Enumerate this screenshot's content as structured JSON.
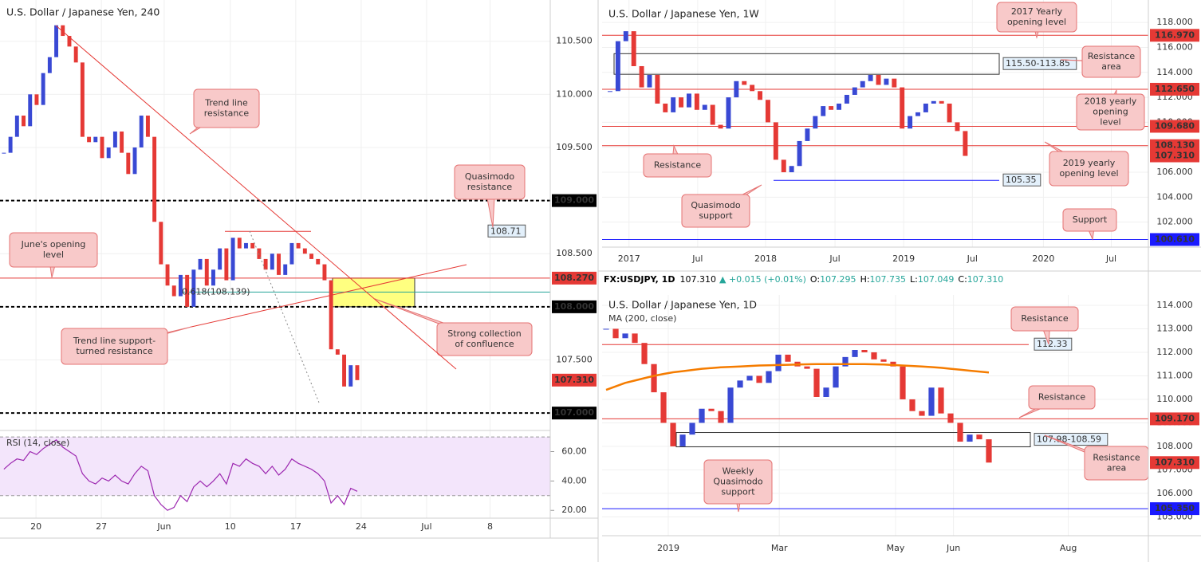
{
  "panels": {
    "h4": {
      "title": "U.S. Dollar / Japanese Yen, 240",
      "grid": true,
      "up_color": "#3949d4",
      "down_color": "#e53935",
      "xlim": [
        -0.6,
        83.5
      ],
      "xticks": [
        {
          "value": 4.9,
          "label": "20"
        },
        {
          "value": 14.9,
          "label": "27"
        },
        {
          "value": 24.5,
          "label": "Jun"
        },
        {
          "value": 34.6,
          "label": "10"
        },
        {
          "value": 44.6,
          "label": "17"
        },
        {
          "value": 54.6,
          "label": "24"
        },
        {
          "value": 64.6,
          "label": "Jul"
        },
        {
          "value": 74.3,
          "label": "8"
        }
      ],
      "ylim": [
        106.836,
        110.888
      ],
      "yticks": [
        {
          "value": 107,
          "label": "107.000"
        },
        {
          "value": 107.5,
          "label": "107.500"
        },
        {
          "value": 108,
          "label": "108.000"
        },
        {
          "value": 108.5,
          "label": "108.500"
        },
        {
          "value": 109,
          "label": "109.000"
        },
        {
          "value": 109.5,
          "label": "109.500"
        },
        {
          "value": 110,
          "label": "110.000"
        },
        {
          "value": 110.5,
          "label": "110.500"
        }
      ],
      "closes": [
        109.45,
        109.6,
        109.8,
        109.7,
        110.0,
        109.9,
        110.2,
        110.35,
        110.65,
        110.55,
        110.45,
        110.3,
        109.6,
        109.55,
        109.6,
        109.4,
        109.5,
        109.65,
        109.45,
        109.25,
        109.5,
        109.8,
        109.6,
        108.8,
        108.4,
        108.2,
        108.1,
        108.3,
        108.0,
        108.35,
        108.45,
        108.2,
        108.35,
        108.55,
        108.25,
        108.65,
        108.55,
        108.6,
        108.55,
        108.45,
        108.35,
        108.5,
        108.3,
        108.4,
        108.6,
        108.55,
        108.5,
        108.45,
        108.4,
        108.25,
        107.6,
        107.55,
        107.25,
        107.45,
        107.31
      ],
      "levels": [
        {
          "value": 109,
          "label": "109.000",
          "color": "#000000",
          "style": "dashed",
          "tag": "axis"
        },
        {
          "value": 108.27,
          "label": "108.270",
          "color": "#e53935",
          "style": "solid",
          "tag": "axis"
        },
        {
          "value": 108,
          "label": "108.000",
          "color": "#000000",
          "style": "dashed",
          "tag": "axis"
        },
        {
          "value": 107.31,
          "label": "107.310",
          "color": "#e53935",
          "style": "none",
          "tag": "axis"
        },
        {
          "value": 107,
          "label": "107.000",
          "color": "#000000",
          "style": "dashed",
          "tag": "axis"
        },
        {
          "value": 108.71,
          "label": "108.71",
          "color": "#e53935",
          "style": "solid",
          "tag": "box"
        },
        {
          "value": 108.139,
          "label": "0.618(108.139)",
          "color": "#26a69a",
          "style": "solid",
          "tag": "text"
        }
      ],
      "zones": [
        {
          "low": 108,
          "high": 108.27,
          "color": "#ffff80"
        }
      ],
      "callouts": [
        {
          "lines": [
            "Trend line",
            "resistance"
          ]
        },
        {
          "lines": [
            "Quasimodo",
            "resistance"
          ]
        },
        {
          "lines": [
            "June's opening",
            "level"
          ]
        },
        {
          "lines": [
            "Trend line support-",
            "turned resistance"
          ]
        },
        {
          "lines": [
            "Strong collection",
            "of confluence"
          ]
        }
      ],
      "rsi": {
        "title": "RSI (14, close)",
        "color": "#9c27b0",
        "ylim": [
          14.7,
          73.3
        ],
        "yticks": [
          {
            "value": 20,
            "label": "20.00"
          },
          {
            "value": 40,
            "label": "40.00"
          },
          {
            "value": 60,
            "label": "60.00"
          }
        ],
        "bands": [
          30,
          70
        ],
        "values": [
          48,
          52,
          55,
          54,
          60,
          58,
          62,
          65,
          68,
          63,
          60,
          57,
          45,
          40,
          38,
          42,
          40,
          44,
          40,
          38,
          45,
          50,
          47,
          30,
          24,
          20,
          22,
          30,
          26,
          36,
          40,
          36,
          40,
          45,
          38,
          52,
          50,
          55,
          52,
          50,
          45,
          50,
          44,
          48,
          55,
          52,
          50,
          48,
          45,
          40,
          25,
          30,
          24,
          35,
          33
        ]
      }
    },
    "w": {
      "title": "U.S. Dollar / Japanese Yen, 1W",
      "grid": true,
      "up_color": "#3949d4",
      "down_color": "#e53935",
      "xlim": [
        -1.01,
        68.2
      ],
      "xticks": [
        {
          "value": 2.4,
          "label": "2017"
        },
        {
          "value": 11.1,
          "label": "Jul"
        },
        {
          "value": 19.7,
          "label": "2018"
        },
        {
          "value": 28.5,
          "label": "Jul"
        },
        {
          "value": 37.2,
          "label": "2019"
        },
        {
          "value": 45.9,
          "label": "Jul"
        },
        {
          "value": 54.9,
          "label": "2020"
        },
        {
          "value": 63.5,
          "label": "Jul"
        }
      ],
      "ylim": [
        100,
        119.8
      ],
      "yticks": [
        {
          "value": 102,
          "label": "102.000"
        },
        {
          "value": 104,
          "label": "104.000"
        },
        {
          "value": 106,
          "label": "106.000"
        },
        {
          "value": 108,
          "label": "108.000"
        },
        {
          "value": 110,
          "label": "110.000"
        },
        {
          "value": 112,
          "label": "112.000"
        },
        {
          "value": 114,
          "label": "114.000"
        },
        {
          "value": 116,
          "label": "116.000"
        },
        {
          "value": 118,
          "label": "118.000"
        }
      ],
      "closes": [
        112.5,
        116.5,
        117.3,
        114.5,
        112.8,
        113.8,
        111.5,
        110.8,
        112.0,
        111.2,
        112.3,
        111.0,
        111.4,
        109.8,
        109.5,
        112.0,
        113.3,
        113.0,
        112.5,
        111.8,
        110.0,
        107.0,
        106.0,
        106.5,
        108.5,
        109.5,
        110.5,
        111.3,
        111.0,
        111.5,
        112.2,
        112.8,
        113.3,
        113.8,
        113.0,
        113.5,
        112.8,
        109.5,
        110.5,
        110.8,
        111.5,
        111.7,
        111.5,
        110.0,
        109.3,
        107.31
      ],
      "levels": [
        {
          "value": 116.97,
          "label": "116.970",
          "color": "#e53935",
          "style": "solid",
          "tag": "axis"
        },
        {
          "value": 112.65,
          "label": "112.650",
          "color": "#e53935",
          "style": "solid",
          "tag": "axis"
        },
        {
          "value": 109.68,
          "label": "109.680",
          "color": "#e53935",
          "style": "solid",
          "tag": "axis"
        },
        {
          "value": 108.13,
          "label": "108.130",
          "color": "#e53935",
          "style": "solid",
          "tag": "axis"
        },
        {
          "value": 107.31,
          "label": "107.310",
          "color": "#e53935",
          "style": "none",
          "tag": "axis"
        },
        {
          "value": 100.61,
          "label": "100.610",
          "color": "#1a1aff",
          "style": "solid",
          "tag": "axis"
        },
        {
          "value": 105.35,
          "label": "105.35",
          "color": "#1a1aff",
          "style": "solid",
          "tag": "box"
        }
      ],
      "zones": [
        {
          "low": 113.85,
          "high": 115.5,
          "label": "115.50-113.85"
        }
      ],
      "callouts": [
        {
          "lines": [
            "2017 Yearly",
            "opening level"
          ]
        },
        {
          "lines": [
            "Resistance",
            "area"
          ]
        },
        {
          "lines": [
            "2018 yearly",
            "opening",
            "level"
          ]
        },
        {
          "lines": [
            "Resistance"
          ]
        },
        {
          "lines": [
            "2019 yearly",
            "opening level"
          ]
        },
        {
          "lines": [
            "Quasimodo",
            "support"
          ]
        },
        {
          "lines": [
            "Support"
          ]
        }
      ]
    },
    "d": {
      "title": "U.S. Dollar / Japanese Yen, 1D",
      "grid": true,
      "up_color": "#3949d4",
      "down_color": "#e53935",
      "quote": {
        "symbol": "FX:USDJPY, 1D",
        "last": "107.310",
        "change": "▲ +0.015 (+0.01%)",
        "ohlc": [
          {
            "label": "O:",
            "value": "107.295"
          },
          {
            "label": "H:",
            "value": "107.735"
          },
          {
            "label": "L:",
            "value": "107.049"
          },
          {
            "label": "C:",
            "value": "107.310"
          }
        ]
      },
      "xlim": [
        -0.42,
        56.67
      ],
      "xticks": [
        {
          "value": 6.5,
          "label": "2019"
        },
        {
          "value": 18.1,
          "label": "Mar"
        },
        {
          "value": 30.25,
          "label": "May"
        },
        {
          "value": 36.3,
          "label": "Jun"
        },
        {
          "value": 48.3,
          "label": "Aug"
        }
      ],
      "ylim": [
        104.2,
        114.44
      ],
      "yticks": [
        {
          "value": 105,
          "label": "105.000"
        },
        {
          "value": 106,
          "label": "106.000"
        },
        {
          "value": 107,
          "label": "107.000"
        },
        {
          "value": 108,
          "label": "108.000"
        },
        {
          "value": 109,
          "label": "109.000"
        },
        {
          "value": 110,
          "label": "110.000"
        },
        {
          "value": 111,
          "label": "111.000"
        },
        {
          "value": 112,
          "label": "112.000"
        },
        {
          "value": 113,
          "label": "113.000"
        },
        {
          "value": 114,
          "label": "114.000"
        }
      ],
      "closes": [
        113.0,
        112.6,
        112.8,
        112.4,
        111.5,
        110.3,
        109.0,
        108.0,
        108.5,
        109.0,
        109.6,
        109.5,
        109.0,
        110.5,
        110.8,
        111.0,
        110.7,
        111.2,
        111.9,
        111.6,
        111.4,
        111.3,
        110.1,
        110.5,
        111.4,
        111.8,
        112.1,
        112.0,
        111.7,
        111.6,
        111.4,
        110.0,
        109.5,
        109.3,
        110.5,
        109.4,
        109.0,
        108.2,
        108.5,
        108.3,
        107.31
      ],
      "sma": {
        "title": "MA (200, close)",
        "color": "#f57c00",
        "values": [
          110.4,
          110.55,
          110.7,
          110.8,
          110.9,
          111.0,
          111.08,
          111.15,
          111.2,
          111.25,
          111.3,
          111.33,
          111.36,
          111.38,
          111.4,
          111.42,
          111.44,
          111.45,
          111.46,
          111.47,
          111.48,
          111.49,
          111.5,
          111.5,
          111.5,
          111.5,
          111.5,
          111.5,
          111.49,
          111.48,
          111.46,
          111.44,
          111.42,
          111.4,
          111.37,
          111.34,
          111.3,
          111.26,
          111.22,
          111.18,
          111.14
        ]
      },
      "levels": [
        {
          "value": 112.33,
          "label": "112.33",
          "color": "#e53935",
          "style": "solid",
          "tag": "box"
        },
        {
          "value": 109.17,
          "label": "109.170",
          "color": "#e53935",
          "style": "solid",
          "tag": "axis"
        },
        {
          "value": 107.31,
          "label": "107.310",
          "color": "#e53935",
          "style": "none",
          "tag": "axis"
        },
        {
          "value": 105.35,
          "label": "105.350",
          "color": "#1a1aff",
          "style": "solid",
          "tag": "axis"
        }
      ],
      "zones": [
        {
          "low": 107.98,
          "high": 108.59,
          "label": "107.98-108.59"
        }
      ],
      "callouts": [
        {
          "lines": [
            "Resistance"
          ]
        },
        {
          "lines": [
            "Resistance"
          ]
        },
        {
          "lines": [
            "Resistance",
            "area"
          ]
        },
        {
          "lines": [
            "Weekly",
            "Quasimodo",
            "support"
          ]
        }
      ]
    }
  }
}
